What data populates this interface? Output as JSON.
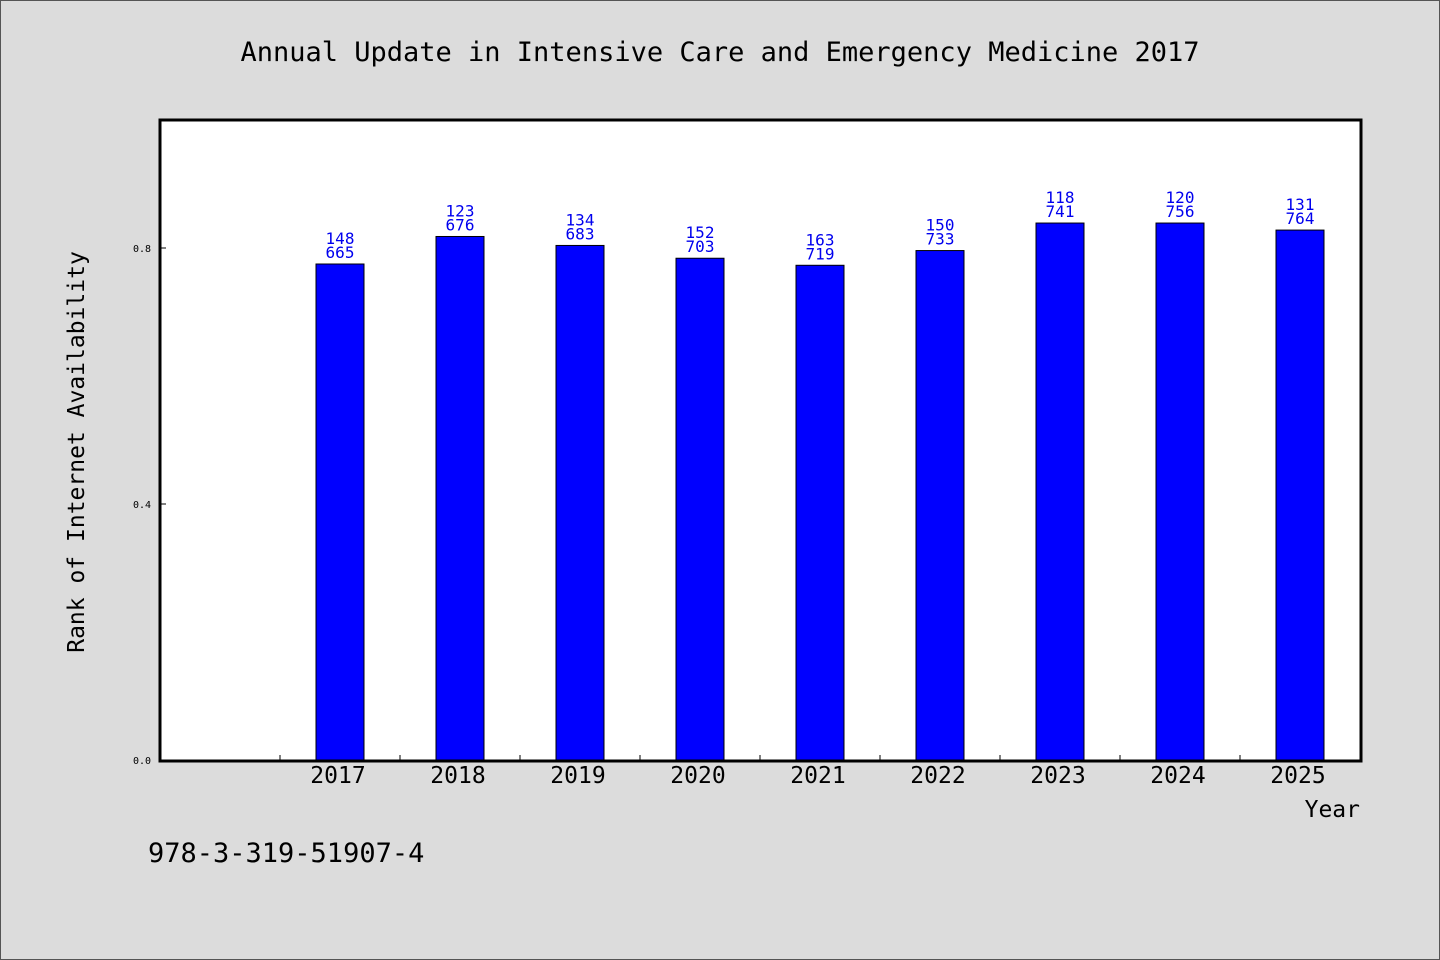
{
  "chart_data": {
    "type": "bar",
    "title": "Annual Update in Intensive Care and Emergency Medicine 2017",
    "xlabel": "Year",
    "ylabel": "Rank of Internet Availability",
    "categories": [
      "2017",
      "2018",
      "2019",
      "2020",
      "2021",
      "2022",
      "2023",
      "2024",
      "2025"
    ],
    "values": [
      0.775,
      0.818,
      0.804,
      0.784,
      0.773,
      0.796,
      0.839,
      0.839,
      0.828
    ],
    "labels_top": [
      "148",
      "123",
      "134",
      "152",
      "163",
      "150",
      "118",
      "120",
      "131"
    ],
    "labels_bottom": [
      "665",
      "676",
      "683",
      "703",
      "719",
      "733",
      "741",
      "756",
      "764"
    ],
    "yticks": [
      "0.0",
      "0.4",
      "0.8"
    ],
    "ylim": [
      0,
      1.0
    ],
    "grid": false,
    "bar_color": "#0000ff",
    "label_color": "#0000ee"
  },
  "footer": {
    "isbn": "978-3-319-51907-4"
  }
}
